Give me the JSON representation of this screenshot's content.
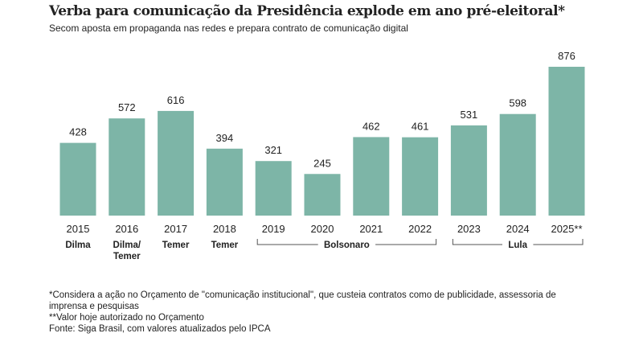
{
  "title": "Verba para comunicação da Presidência explode em ano pré-eleitoral*",
  "subtitle": "Secom aposta em propaganda nas redes e prepara contrato de comunicação digital",
  "footnotes": [
    "*Considera a ação no Orçamento de \"comunicação institucional\", que custeia contratos como de publicidade, assessoria de imprensa e pesquisas",
    "**Valor hoje autorizado no Orçamento",
    "Fonte: Siga Brasil, com valores atualizados pelo IPCA"
  ],
  "chart_data": {
    "type": "bar",
    "title": "Verba para comunicação da Presidência explode em ano pré-eleitoral*",
    "categories": [
      "2015",
      "2016",
      "2017",
      "2018",
      "2019",
      "2020",
      "2021",
      "2022",
      "2023",
      "2024",
      "2025**"
    ],
    "values": [
      428,
      572,
      616,
      394,
      321,
      245,
      462,
      461,
      531,
      598,
      876
    ],
    "data_labels": [
      "428",
      "572",
      "616",
      "394",
      "321",
      "245",
      "462",
      "461",
      "531",
      "598",
      "876"
    ],
    "ylim": [
      0,
      900
    ],
    "grid": false,
    "bar_color": "#7db5a7",
    "presidents": [
      {
        "label": "Dilma",
        "from": 0,
        "to": 0,
        "bracket": false
      },
      {
        "label": "Dilma/\nTemer",
        "from": 1,
        "to": 1,
        "bracket": false
      },
      {
        "label": "Temer",
        "from": 2,
        "to": 2,
        "bracket": false
      },
      {
        "label": "Temer",
        "from": 3,
        "to": 3,
        "bracket": false
      },
      {
        "label": "Bolsonaro",
        "from": 4,
        "to": 7,
        "bracket": true
      },
      {
        "label": "Lula",
        "from": 8,
        "to": 10,
        "bracket": true
      }
    ]
  }
}
